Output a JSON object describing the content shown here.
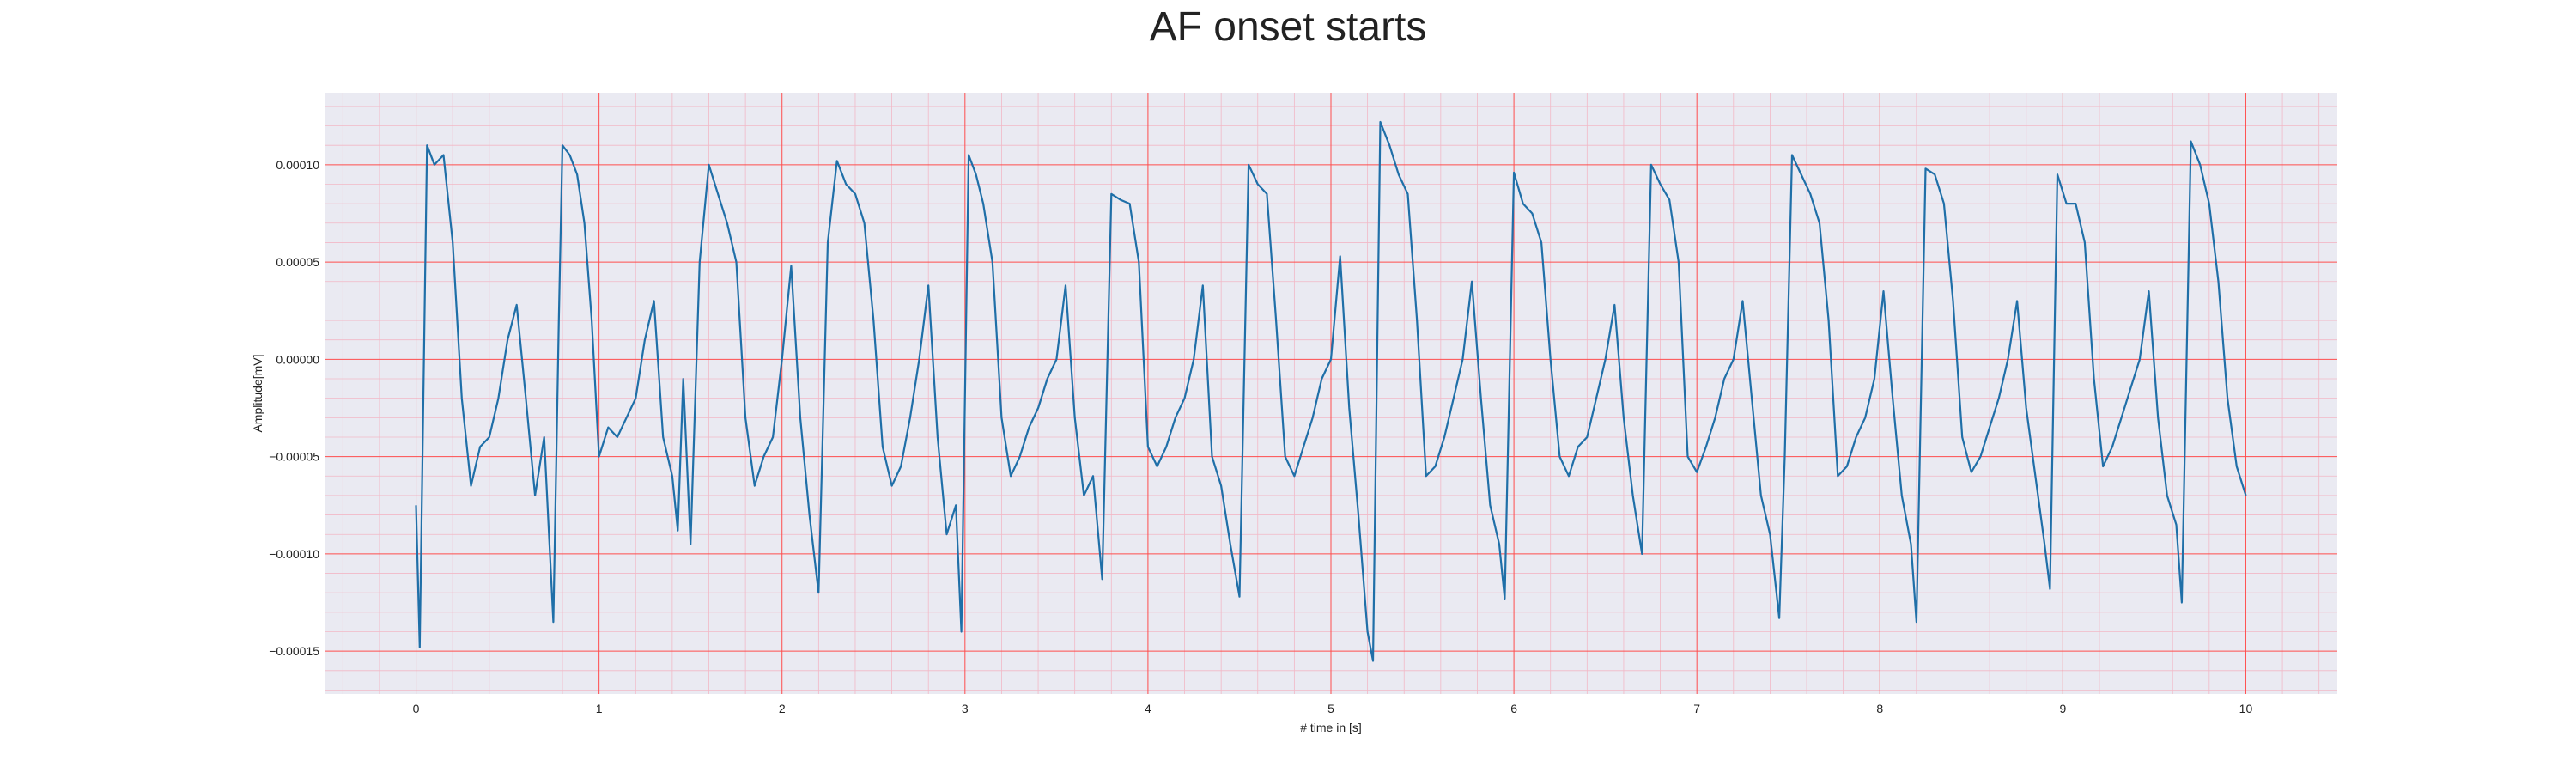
{
  "chart_data": {
    "type": "line",
    "title": "AF onset starts",
    "xlabel": "# time in [s]",
    "ylabel": "Amplitude[mV]",
    "xlim": [
      -0.5,
      10.5
    ],
    "ylim": [
      -0.000172,
      0.000137
    ],
    "xticks": [
      0,
      1,
      2,
      3,
      4,
      5,
      6,
      7,
      8,
      9,
      10
    ],
    "xtick_labels": [
      "0",
      "1",
      "2",
      "3",
      "4",
      "5",
      "6",
      "7",
      "8",
      "9",
      "10"
    ],
    "yticks": [
      -0.00015,
      -0.0001,
      -5e-05,
      0.0,
      5e-05,
      0.0001
    ],
    "ytick_labels": [
      "−0.00015",
      "−0.00010",
      "−0.00005",
      "0.00000",
      "0.00005",
      "0.00010"
    ],
    "grid": true,
    "colors": {
      "background": "#eaeaf2",
      "major_grid": "#ff4d4d",
      "minor_grid": "#f2b8c6",
      "line": "#1f6fa8"
    },
    "series": [
      {
        "name": "",
        "x": [
          0.0,
          0.02,
          0.06,
          0.1,
          0.15,
          0.2,
          0.25,
          0.3,
          0.35,
          0.4,
          0.45,
          0.5,
          0.55,
          0.6,
          0.65,
          0.7,
          0.75,
          0.78,
          0.8,
          0.84,
          0.88,
          0.92,
          0.96,
          1.0,
          1.05,
          1.1,
          1.15,
          1.2,
          1.25,
          1.3,
          1.35,
          1.4,
          1.43,
          1.46,
          1.5,
          1.55,
          1.6,
          1.65,
          1.7,
          1.75,
          1.8,
          1.85,
          1.9,
          1.95,
          2.0,
          2.05,
          2.1,
          2.15,
          2.2,
          2.25,
          2.3,
          2.35,
          2.4,
          2.45,
          2.5,
          2.55,
          2.6,
          2.65,
          2.7,
          2.75,
          2.8,
          2.85,
          2.9,
          2.95,
          2.98,
          3.02,
          3.06,
          3.1,
          3.15,
          3.2,
          3.25,
          3.3,
          3.35,
          3.4,
          3.45,
          3.5,
          3.55,
          3.6,
          3.65,
          3.7,
          3.75,
          3.8,
          3.85,
          3.9,
          3.95,
          4.0,
          4.05,
          4.1,
          4.15,
          4.2,
          4.25,
          4.3,
          4.35,
          4.4,
          4.45,
          4.5,
          4.55,
          4.6,
          4.65,
          4.7,
          4.75,
          4.8,
          4.85,
          4.9,
          4.95,
          5.0,
          5.05,
          5.1,
          5.15,
          5.2,
          5.23,
          5.27,
          5.32,
          5.37,
          5.42,
          5.47,
          5.52,
          5.57,
          5.62,
          5.67,
          5.72,
          5.77,
          5.82,
          5.87,
          5.92,
          5.95,
          6.0,
          6.05,
          6.1,
          6.15,
          6.2,
          6.25,
          6.3,
          6.35,
          6.4,
          6.45,
          6.5,
          6.55,
          6.6,
          6.65,
          6.7,
          6.75,
          6.8,
          6.85,
          6.9,
          6.95,
          7.0,
          7.05,
          7.1,
          7.15,
          7.2,
          7.25,
          7.3,
          7.35,
          7.4,
          7.45,
          7.48,
          7.52,
          7.57,
          7.62,
          7.67,
          7.72,
          7.77,
          7.82,
          7.87,
          7.92,
          7.97,
          8.02,
          8.07,
          8.12,
          8.17,
          8.2,
          8.25,
          8.3,
          8.35,
          8.4,
          8.45,
          8.5,
          8.55,
          8.6,
          8.65,
          8.7,
          8.75,
          8.8,
          8.85,
          8.9,
          8.93,
          8.97,
          9.02,
          9.07,
          9.12,
          9.17,
          9.22,
          9.27,
          9.32,
          9.37,
          9.42,
          9.47,
          9.52,
          9.57,
          9.62,
          9.65,
          9.7,
          9.75,
          9.8,
          9.85,
          9.9,
          9.95,
          10.0
        ],
        "y": [
          -7.5e-05,
          -0.000148,
          0.00011,
          0.0001,
          0.000105,
          6e-05,
          -2e-05,
          -6.5e-05,
          -4.5e-05,
          -4e-05,
          -2e-05,
          1e-05,
          2.8e-05,
          -2e-05,
          -7e-05,
          -4e-05,
          -0.000135,
          2e-05,
          0.00011,
          0.000105,
          9.5e-05,
          7e-05,
          2e-05,
          -5e-05,
          -3.5e-05,
          -4e-05,
          -3e-05,
          -2e-05,
          1e-05,
          3e-05,
          -4e-05,
          -6e-05,
          -8.8e-05,
          -1e-05,
          -9.5e-05,
          5e-05,
          0.0001,
          8.5e-05,
          7e-05,
          5e-05,
          -3e-05,
          -6.5e-05,
          -5e-05,
          -4e-05,
          0.0,
          4.8e-05,
          -3e-05,
          -8e-05,
          -0.00012,
          6e-05,
          0.000102,
          9e-05,
          8.5e-05,
          7e-05,
          2e-05,
          -4.5e-05,
          -6.5e-05,
          -5.5e-05,
          -3e-05,
          0.0,
          3.8e-05,
          -4e-05,
          -9e-05,
          -7.5e-05,
          -0.00014,
          0.000105,
          9.5e-05,
          8e-05,
          5e-05,
          -3e-05,
          -6e-05,
          -5e-05,
          -3.5e-05,
          -2.5e-05,
          -1e-05,
          0.0,
          3.8e-05,
          -3e-05,
          -7e-05,
          -6e-05,
          -0.000113,
          8.5e-05,
          8.2e-05,
          8e-05,
          5e-05,
          -4.5e-05,
          -5.5e-05,
          -4.5e-05,
          -3e-05,
          -2e-05,
          0.0,
          3.8e-05,
          -5e-05,
          -6.5e-05,
          -9.5e-05,
          -0.000122,
          0.0001,
          9e-05,
          8.5e-05,
          2e-05,
          -5e-05,
          -6e-05,
          -4.5e-05,
          -3e-05,
          -1e-05,
          0.0,
          5.3e-05,
          -2.5e-05,
          -8e-05,
          -0.00014,
          -0.000155,
          0.000122,
          0.00011,
          9.5e-05,
          8.5e-05,
          2e-05,
          -6e-05,
          -5.5e-05,
          -4e-05,
          -2e-05,
          0.0,
          4e-05,
          -2e-05,
          -7.5e-05,
          -9.5e-05,
          -0.000123,
          9.6e-05,
          8e-05,
          7.5e-05,
          6e-05,
          0.0,
          -5e-05,
          -6e-05,
          -4.5e-05,
          -4e-05,
          -2e-05,
          0.0,
          2.8e-05,
          -3e-05,
          -7e-05,
          -0.0001,
          0.0001,
          9e-05,
          8.2e-05,
          5e-05,
          -5e-05,
          -5.8e-05,
          -4.5e-05,
          -3e-05,
          -1e-05,
          0.0,
          3e-05,
          -2e-05,
          -7e-05,
          -9e-05,
          -0.000133,
          -5e-05,
          0.000105,
          9.5e-05,
          8.5e-05,
          7e-05,
          2e-05,
          -6e-05,
          -5.5e-05,
          -4e-05,
          -3e-05,
          -1e-05,
          3.5e-05,
          -2e-05,
          -7e-05,
          -9.5e-05,
          -0.000135,
          9.8e-05,
          9.5e-05,
          8e-05,
          3e-05,
          -4e-05,
          -5.8e-05,
          -5e-05,
          -3.5e-05,
          -2e-05,
          0.0,
          3e-05,
          -2.5e-05,
          -6e-05,
          -9.5e-05,
          -0.000118,
          9.5e-05,
          8e-05,
          8e-05,
          6e-05,
          -1e-05,
          -5.5e-05,
          -4.5e-05,
          -3e-05,
          -1.5e-05,
          0.0,
          3.5e-05,
          -3e-05,
          -7e-05,
          -8.5e-05,
          -0.000125,
          0.000112,
          0.0001,
          8e-05,
          4e-05,
          -2e-05,
          -5.5e-05,
          -7e-05
        ]
      }
    ]
  }
}
